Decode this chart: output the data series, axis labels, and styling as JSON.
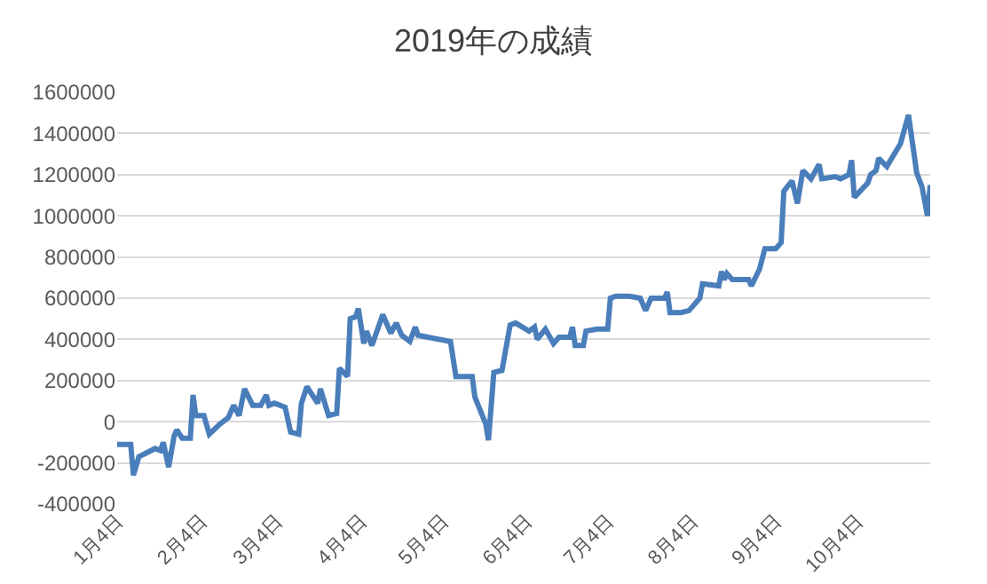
{
  "chart_data": {
    "type": "line",
    "title": "2019年の成績",
    "x": [
      "2019-01-04",
      "2019-01-09",
      "2019-01-10",
      "2019-01-12",
      "2019-01-15",
      "2019-01-18",
      "2019-01-20",
      "2019-01-21",
      "2019-01-23",
      "2019-01-25",
      "2019-01-26",
      "2019-01-28",
      "2019-01-31",
      "2019-02-01",
      "2019-02-02",
      "2019-02-05",
      "2019-02-07",
      "2019-02-11",
      "2019-02-14",
      "2019-02-16",
      "2019-02-18",
      "2019-02-20",
      "2019-02-23",
      "2019-02-26",
      "2019-02-28",
      "2019-03-01",
      "2019-03-03",
      "2019-03-07",
      "2019-03-09",
      "2019-03-12",
      "2019-03-13",
      "2019-03-15",
      "2019-03-19",
      "2019-03-20",
      "2019-03-23",
      "2019-03-26",
      "2019-03-27",
      "2019-03-30",
      "2019-03-31",
      "2019-04-02",
      "2019-04-03",
      "2019-04-05",
      "2019-04-06",
      "2019-04-08",
      "2019-04-12",
      "2019-04-15",
      "2019-04-17",
      "2019-04-19",
      "2019-04-22",
      "2019-04-24",
      "2019-04-25",
      "2019-05-07",
      "2019-05-09",
      "2019-05-15",
      "2019-05-16",
      "2019-05-20",
      "2019-05-21",
      "2019-05-23",
      "2019-05-26",
      "2019-05-29",
      "2019-05-31",
      "2019-06-05",
      "2019-06-07",
      "2019-06-08",
      "2019-06-11",
      "2019-06-14",
      "2019-06-16",
      "2019-06-20",
      "2019-06-21",
      "2019-06-22",
      "2019-06-25",
      "2019-06-26",
      "2019-06-30",
      "2019-07-04",
      "2019-07-05",
      "2019-07-07",
      "2019-07-12",
      "2019-07-16",
      "2019-07-18",
      "2019-07-20",
      "2019-07-25",
      "2019-07-26",
      "2019-07-27",
      "2019-07-31",
      "2019-08-03",
      "2019-08-07",
      "2019-08-08",
      "2019-08-14",
      "2019-08-15",
      "2019-08-16",
      "2019-08-17",
      "2019-08-19",
      "2019-08-25",
      "2019-08-26",
      "2019-08-29",
      "2019-08-31",
      "2019-09-04",
      "2019-09-06",
      "2019-09-07",
      "2019-09-10",
      "2019-09-12",
      "2019-09-14",
      "2019-09-17",
      "2019-09-20",
      "2019-09-21",
      "2019-09-26",
      "2019-09-28",
      "2019-10-01",
      "2019-10-02",
      "2019-10-03",
      "2019-10-08",
      "2019-10-09",
      "2019-10-11",
      "2019-10-12",
      "2019-10-15",
      "2019-10-20",
      "2019-10-23",
      "2019-10-26",
      "2019-10-28",
      "2019-10-30",
      "2019-10-31"
    ],
    "series": [
      {
        "color": "#4a7ebb",
        "values": [
          -110000,
          -110000,
          -260000,
          -170000,
          -150000,
          -130000,
          -140000,
          -100000,
          -220000,
          -70000,
          -40000,
          -80000,
          -80000,
          130000,
          30000,
          30000,
          -60000,
          -10000,
          20000,
          80000,
          30000,
          160000,
          80000,
          80000,
          130000,
          80000,
          90000,
          70000,
          -50000,
          -60000,
          90000,
          170000,
          90000,
          160000,
          30000,
          40000,
          260000,
          220000,
          500000,
          510000,
          550000,
          380000,
          440000,
          370000,
          520000,
          430000,
          480000,
          420000,
          390000,
          460000,
          420000,
          390000,
          220000,
          220000,
          120000,
          -10000,
          -90000,
          240000,
          250000,
          470000,
          480000,
          440000,
          460000,
          400000,
          450000,
          380000,
          410000,
          410000,
          460000,
          370000,
          370000,
          440000,
          450000,
          450000,
          600000,
          610000,
          610000,
          600000,
          540000,
          600000,
          600000,
          630000,
          530000,
          530000,
          540000,
          600000,
          670000,
          660000,
          730000,
          690000,
          720000,
          690000,
          690000,
          660000,
          740000,
          840000,
          840000,
          870000,
          1120000,
          1170000,
          1060000,
          1220000,
          1180000,
          1250000,
          1180000,
          1190000,
          1180000,
          1200000,
          1270000,
          1090000,
          1160000,
          1200000,
          1220000,
          1280000,
          1240000,
          1350000,
          1490000,
          1210000,
          1140000,
          1000000,
          1150000
        ]
      }
    ],
    "xlim": [
      "2019-01-04",
      "2019-10-31"
    ],
    "xticks": [
      {
        "value": "2019-01-04",
        "label": "1月4日"
      },
      {
        "value": "2019-02-04",
        "label": "2月4日"
      },
      {
        "value": "2019-03-04",
        "label": "3月4日"
      },
      {
        "value": "2019-04-04",
        "label": "4月4日"
      },
      {
        "value": "2019-05-04",
        "label": "5月4日"
      },
      {
        "value": "2019-06-04",
        "label": "6月4日"
      },
      {
        "value": "2019-07-04",
        "label": "7月4日"
      },
      {
        "value": "2019-08-04",
        "label": "8月4日"
      },
      {
        "value": "2019-09-04",
        "label": "9月4日"
      },
      {
        "value": "2019-10-04",
        "label": "10月4日"
      }
    ],
    "ylim": [
      -400000,
      1600000
    ],
    "yticks": [
      -400000,
      -200000,
      0,
      200000,
      400000,
      600000,
      800000,
      1000000,
      1200000,
      1400000,
      1600000
    ],
    "grid": "y",
    "marker": "none",
    "line_style": "solid"
  }
}
